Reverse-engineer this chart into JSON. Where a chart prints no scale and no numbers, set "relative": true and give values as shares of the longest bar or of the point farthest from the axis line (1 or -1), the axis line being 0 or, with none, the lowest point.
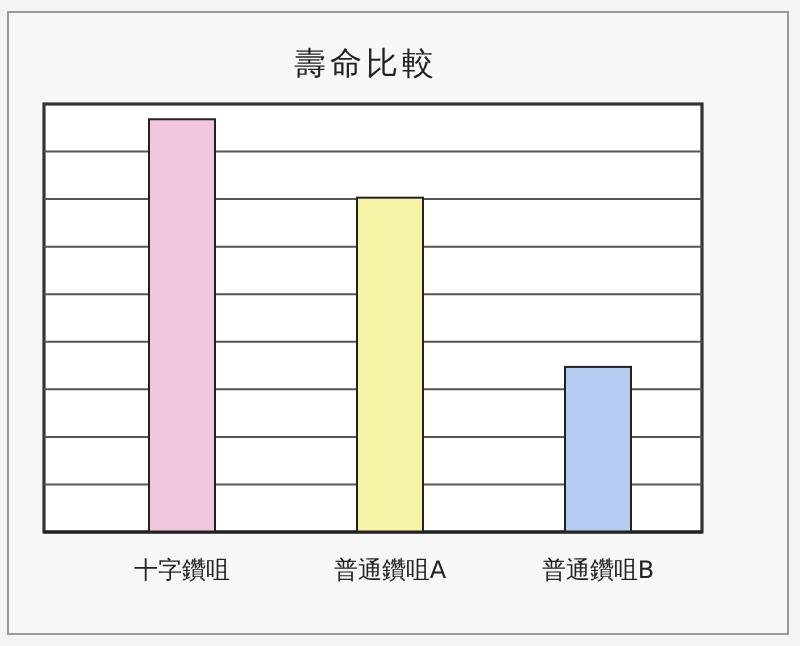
{
  "chart_data": {
    "type": "bar",
    "title": "壽命比較",
    "categories": [
      "十字鑽咀",
      "普通鑽咀A",
      "普通鑽咀B"
    ],
    "values": [
      1,
      0.81,
      0.4
    ],
    "colors": [
      "#f2c6dd",
      "#f6f2a6",
      "#b3ccef"
    ],
    "relative": true,
    "grid": "y"
  }
}
